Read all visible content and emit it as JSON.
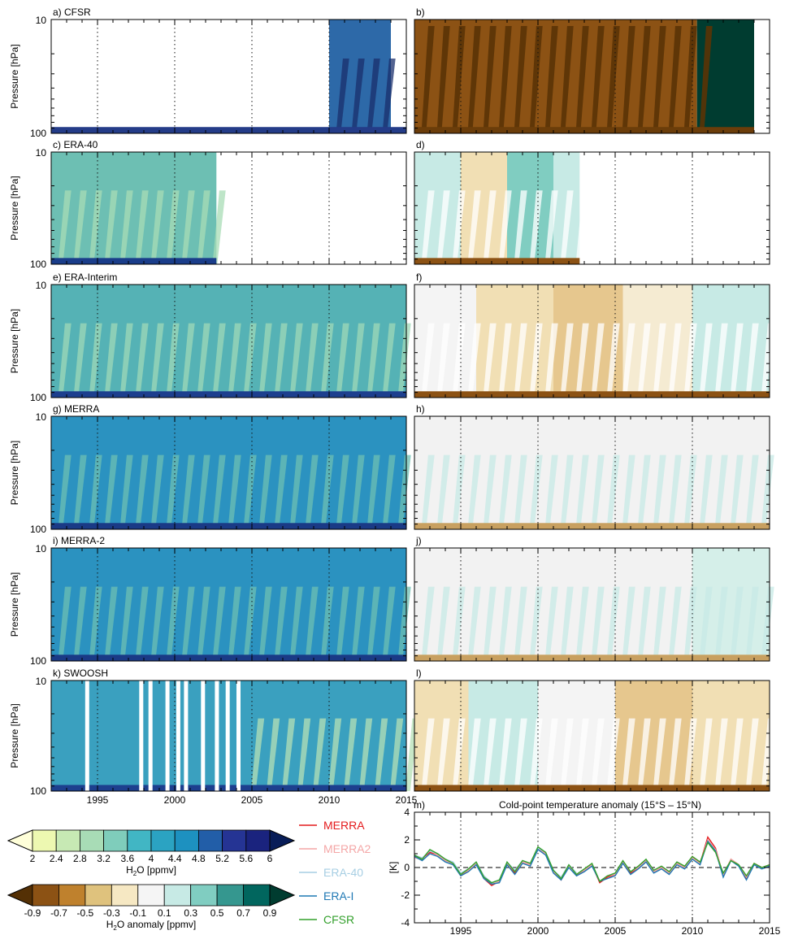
{
  "chart_data": [
    {
      "type": "heatmap",
      "panel": "a",
      "title": "a) CFSR",
      "ylabel": "Pressure [hPa]",
      "y_ticks": [
        "10",
        "100"
      ],
      "y_scale": "log",
      "ylim": [
        100,
        10
      ],
      "xlim": [
        1992,
        2015
      ],
      "variable": "H2O [ppmv]",
      "coverage": [
        [
          1992,
          2015
        ]
      ],
      "bands": [
        {
          "start": 1992.0,
          "end": 2010.0,
          "color": "#ffffff"
        },
        {
          "start": 2010.0,
          "end": 2014.0,
          "color": "#2d69a8"
        }
      ],
      "bottom_color": "#243c88",
      "stripe_color": "#1a2f6c",
      "stripe_period": 1,
      "stripe_start": 2010.0,
      "stripe_end": 2014.0
    },
    {
      "type": "heatmap",
      "panel": "b",
      "title": "b)",
      "y_scale": "log",
      "ylim": [
        100,
        10
      ],
      "xlim": [
        1992,
        2015
      ],
      "variable": "H2O anomaly [ppmv]",
      "coverage": [
        [
          1992,
          2014
        ]
      ],
      "bands": [
        {
          "start": 1992.0,
          "end": 2010.3,
          "color": "#8c5214"
        },
        {
          "start": 2010.3,
          "end": 2014.0,
          "color": "#003c30"
        }
      ],
      "bottom_color": "#6b3d0a",
      "stripe_color": "#5a3306",
      "stripe_period": 1,
      "stripe_start": 1992.0,
      "stripe_end": 2010.3
    },
    {
      "type": "heatmap",
      "panel": "c",
      "title": "c) ERA-40",
      "ylabel": "Pressure [hPa]",
      "y_ticks": [
        "10",
        "100"
      ],
      "y_scale": "log",
      "ylim": [
        100,
        10
      ],
      "xlim": [
        1992,
        2015
      ],
      "variable": "H2O [ppmv]",
      "coverage": [
        [
          1992,
          2002.7
        ]
      ],
      "bands": [
        {
          "start": 1992.0,
          "end": 2002.7,
          "color": "#6dbfb3"
        }
      ],
      "bottom_color": "#1a3d8a",
      "stripe_color": "#a8dcb6",
      "stripe_period": 1,
      "stripe_start": 1992.0,
      "stripe_end": 2002.7
    },
    {
      "type": "heatmap",
      "panel": "d",
      "title": "d)",
      "y_scale": "log",
      "ylim": [
        100,
        10
      ],
      "xlim": [
        1992,
        2015
      ],
      "variable": "H2O anomaly [ppmv]",
      "coverage": [
        [
          1992,
          2002.7
        ]
      ],
      "bands": [
        {
          "start": 1992.0,
          "end": 1995.0,
          "color": "#c7eae5"
        },
        {
          "start": 1995.0,
          "end": 1998.0,
          "color": "#f1dfb4"
        },
        {
          "start": 1998.0,
          "end": 2001.0,
          "color": "#80cdc1"
        },
        {
          "start": 2001.0,
          "end": 2002.7,
          "color": "#c7eae5"
        }
      ],
      "bottom_color": "#8c5214",
      "stripe_color": "#ffffff",
      "stripe_period": 1,
      "stripe_start": 1992.0,
      "stripe_end": 2002.7
    },
    {
      "type": "heatmap",
      "panel": "e",
      "title": "e) ERA-Interim",
      "ylabel": "Pressure [hPa]",
      "y_ticks": [
        "10",
        "100"
      ],
      "y_scale": "log",
      "ylim": [
        100,
        10
      ],
      "xlim": [
        1992,
        2015
      ],
      "variable": "H2O [ppmv]",
      "coverage": [
        [
          1992,
          2015
        ]
      ],
      "bands": [
        {
          "start": 1992.0,
          "end": 2015.0,
          "color": "#55b2b5"
        }
      ],
      "bottom_color": "#1d3f8e",
      "stripe_color": "#9fd8b8",
      "stripe_period": 1,
      "stripe_start": 1992.0,
      "stripe_end": 2015.0
    },
    {
      "type": "heatmap",
      "panel": "f",
      "title": "f)",
      "y_scale": "log",
      "ylim": [
        100,
        10
      ],
      "xlim": [
        1992,
        2015
      ],
      "variable": "H2O anomaly [ppmv]",
      "coverage": [
        [
          1992,
          2015
        ]
      ],
      "bands": [
        {
          "start": 1992.0,
          "end": 1996.0,
          "color": "#f4f4f4"
        },
        {
          "start": 1996.0,
          "end": 2001.0,
          "color": "#f1dfb4"
        },
        {
          "start": 2001.0,
          "end": 2005.5,
          "color": "#e6c78e"
        },
        {
          "start": 2005.5,
          "end": 2010.0,
          "color": "#f5ebd2"
        },
        {
          "start": 2010.0,
          "end": 2015.0,
          "color": "#c7eae5"
        }
      ],
      "bottom_color": "#8c5214",
      "stripe_color": "#ffffff",
      "stripe_period": 1,
      "stripe_start": 1992.0,
      "stripe_end": 2015.0
    },
    {
      "type": "heatmap",
      "panel": "g",
      "title": "g) MERRA",
      "ylabel": "Pressure [hPa]",
      "y_ticks": [
        "10",
        "100"
      ],
      "y_scale": "log",
      "ylim": [
        100,
        10
      ],
      "xlim": [
        1992,
        2015
      ],
      "variable": "H2O [ppmv]",
      "coverage": [
        [
          1992,
          2015
        ]
      ],
      "bands": [
        {
          "start": 1992.0,
          "end": 2015.0,
          "color": "#2b92c0"
        }
      ],
      "bottom_color": "#1a3a86",
      "stripe_color": "#6dbfb3",
      "stripe_period": 1,
      "stripe_start": 1992.0,
      "stripe_end": 2015.0
    },
    {
      "type": "heatmap",
      "panel": "h",
      "title": "h)",
      "y_scale": "log",
      "ylim": [
        100,
        10
      ],
      "xlim": [
        1992,
        2015
      ],
      "variable": "H2O anomaly [ppmv]",
      "coverage": [
        [
          1992,
          2015
        ]
      ],
      "bands": [
        {
          "start": 1992.0,
          "end": 2015.0,
          "color": "#f2f2f2"
        }
      ],
      "bottom_color": "#c8a060",
      "stripe_color": "#c7eae5",
      "stripe_period": 1,
      "stripe_start": 1992.0,
      "stripe_end": 2015.0
    },
    {
      "type": "heatmap",
      "panel": "i",
      "title": "i) MERRA-2",
      "ylabel": "Pressure [hPa]",
      "y_ticks": [
        "10",
        "100"
      ],
      "y_scale": "log",
      "ylim": [
        100,
        10
      ],
      "xlim": [
        1992,
        2015
      ],
      "variable": "H2O [ppmv]",
      "coverage": [
        [
          1992,
          2015
        ]
      ],
      "bands": [
        {
          "start": 1992.0,
          "end": 2015.0,
          "color": "#2b92c0"
        }
      ],
      "bottom_color": "#1a3a86",
      "stripe_color": "#6dbfb3",
      "stripe_period": 1,
      "stripe_start": 1992.0,
      "stripe_end": 2015.0
    },
    {
      "type": "heatmap",
      "panel": "j",
      "title": "j)",
      "y_scale": "log",
      "ylim": [
        100,
        10
      ],
      "xlim": [
        1992,
        2015
      ],
      "variable": "H2O anomaly [ppmv]",
      "coverage": [
        [
          1992,
          2015
        ]
      ],
      "bands": [
        {
          "start": 1992.0,
          "end": 2010.0,
          "color": "#f2f2f2"
        },
        {
          "start": 2010.0,
          "end": 2015.0,
          "color": "#d5efe9"
        }
      ],
      "bottom_color": "#c8a060",
      "stripe_color": "#c7eae5",
      "stripe_period": 1,
      "stripe_start": 1992.0,
      "stripe_end": 2015.0
    },
    {
      "type": "heatmap",
      "panel": "k",
      "title": "k) SWOOSH",
      "ylabel": "Pressure [hPa]",
      "y_ticks": [
        "10",
        "100"
      ],
      "y_scale": "log",
      "ylim": [
        100,
        10
      ],
      "xlim": [
        1992,
        2015
      ],
      "variable": "H2O [ppmv]",
      "coverage": [
        [
          1992,
          2015
        ]
      ],
      "bands": [
        {
          "start": 1992.0,
          "end": 2015.0,
          "color": "#3aa0bf"
        }
      ],
      "bottom_color": "#1d3f8e",
      "stripe_color": "#b5e0b5",
      "stripe_period": 1,
      "stripe_start": 2004.5,
      "stripe_end": 2015.0,
      "gaps": [
        1994.2,
        1997.7,
        1998.3,
        1999.4,
        2000.1,
        2000.6,
        2001.7,
        2002.6,
        2003.3,
        2004.0
      ]
    },
    {
      "type": "heatmap",
      "panel": "l",
      "title": "l)",
      "y_scale": "log",
      "ylim": [
        100,
        10
      ],
      "xlim": [
        1992,
        2015
      ],
      "variable": "H2O anomaly [ppmv]",
      "coverage": [
        [
          1992,
          2015
        ]
      ],
      "bands": [
        {
          "start": 1992.0,
          "end": 1995.5,
          "color": "#f1dfb4"
        },
        {
          "start": 1995.5,
          "end": 2000.0,
          "color": "#c7eae5"
        },
        {
          "start": 2000.0,
          "end": 2005.0,
          "color": "#f4f4f4"
        },
        {
          "start": 2005.0,
          "end": 2010.0,
          "color": "#e6c78e"
        },
        {
          "start": 2010.0,
          "end": 2015.0,
          "color": "#f1dfb4"
        }
      ],
      "bottom_color": "#8c5214",
      "stripe_color": "#ffffff",
      "stripe_period": 1,
      "stripe_start": 1992.0,
      "stripe_end": 2015.0
    },
    {
      "type": "line",
      "panel": "m",
      "label": "m)",
      "title": "Cold-point temperature anomaly (15°S – 15°N)",
      "ylabel": "[K]",
      "xlim": [
        1992,
        2015
      ],
      "ylim": [
        -4,
        4
      ],
      "y_ticks": [
        4,
        2,
        0,
        -2,
        -4
      ],
      "x_ticks": [
        1995,
        2000,
        2005,
        2010,
        2015
      ],
      "x": [
        1992.0,
        1992.5,
        1993.0,
        1993.5,
        1994.0,
        1994.5,
        1995.0,
        1995.5,
        1996.0,
        1996.5,
        1997.0,
        1997.5,
        1998.0,
        1998.5,
        1999.0,
        1999.5,
        2000.0,
        2000.5,
        2001.0,
        2001.5,
        2002.0,
        2002.5,
        2003.0,
        2003.5,
        2004.0,
        2004.5,
        2005.0,
        2005.5,
        2006.0,
        2006.5,
        2007.0,
        2007.5,
        2008.0,
        2008.5,
        2009.0,
        2009.5,
        2010.0,
        2010.5,
        2011.0,
        2011.5,
        2012.0,
        2012.5,
        2013.0,
        2013.5,
        2014.0,
        2014.5,
        2015.0
      ],
      "series": [
        {
          "name": "MERRA",
          "color": "#e41a1c",
          "values": [
            0.8,
            0.6,
            1.1,
            0.9,
            0.5,
            0.3,
            -0.6,
            -0.2,
            0.3,
            -0.8,
            -1.3,
            -1.0,
            0.3,
            -0.4,
            0.4,
            0.2,
            1.4,
            1.0,
            -0.3,
            -0.9,
            0.1,
            -0.6,
            -0.2,
            0.2,
            -1.1,
            -0.7,
            -0.5,
            0.4,
            -0.4,
            0.0,
            0.5,
            -0.3,
            0.0,
            -0.4,
            0.3,
            0.0,
            0.8,
            0.3,
            2.2,
            1.4,
            -0.6,
            0.6,
            0.2,
            -0.8,
            0.3,
            0.0,
            0.2
          ]
        },
        {
          "name": "MERRA2",
          "color": "#f4a6a6",
          "values": [
            0.7,
            0.6,
            1.0,
            0.9,
            0.5,
            0.3,
            -0.5,
            -0.2,
            0.3,
            -0.7,
            -1.2,
            -1.0,
            0.3,
            -0.3,
            0.4,
            0.2,
            1.3,
            1.0,
            -0.3,
            -0.8,
            0.1,
            -0.5,
            -0.2,
            0.2,
            -1.0,
            -0.6,
            -0.5,
            0.4,
            -0.3,
            0.0,
            0.5,
            -0.3,
            0.0,
            -0.4,
            0.3,
            0.0,
            0.7,
            0.3,
            2.0,
            1.3,
            -0.5,
            0.6,
            0.2,
            -0.7,
            0.3,
            0.0,
            0.2
          ]
        },
        {
          "name": "ERA-40",
          "color": "#a6cee3",
          "values": [
            0.9,
            0.7,
            1.2,
            1.0,
            0.6,
            0.4,
            -0.4,
            -0.1,
            0.4,
            -0.6,
            -1.1,
            -0.9,
            0.4,
            -0.2,
            0.5,
            0.3,
            1.4,
            1.1,
            -0.2,
            -0.7,
            0.2,
            -0.4,
            null,
            null,
            null,
            null,
            null,
            null,
            null,
            null,
            null,
            null,
            null,
            null,
            null,
            null,
            null,
            null,
            null,
            null,
            null,
            null,
            null,
            null,
            null,
            null,
            null
          ]
        },
        {
          "name": "ERA-I",
          "color": "#1f78b4",
          "values": [
            0.8,
            0.5,
            1.0,
            0.8,
            0.4,
            0.2,
            -0.6,
            -0.3,
            0.2,
            -0.8,
            -1.2,
            -1.1,
            0.2,
            -0.5,
            0.3,
            0.1,
            1.3,
            0.9,
            -0.4,
            -0.9,
            0.0,
            -0.6,
            -0.3,
            0.1,
            -1.0,
            -0.8,
            -0.6,
            0.3,
            -0.5,
            -0.1,
            0.4,
            -0.4,
            -0.1,
            -0.5,
            0.2,
            -0.1,
            0.6,
            0.2,
            1.9,
            1.2,
            -0.7,
            0.5,
            0.1,
            -0.9,
            0.2,
            -0.1,
            0.1
          ]
        },
        {
          "name": "CFSR",
          "color": "#33a02c",
          "values": [
            0.9,
            0.6,
            1.3,
            1.0,
            0.6,
            0.3,
            -0.5,
            -0.1,
            0.4,
            -0.7,
            -1.1,
            -0.9,
            0.4,
            -0.3,
            0.5,
            0.3,
            1.5,
            1.1,
            -0.2,
            -0.8,
            0.2,
            -0.5,
            -0.1,
            0.3,
            -1.0,
            -0.6,
            -0.4,
            0.5,
            -0.3,
            0.1,
            0.6,
            -0.2,
            0.1,
            -0.3,
            0.4,
            0.1,
            0.8,
            0.4,
            1.8,
            1.1,
            -0.4,
            0.5,
            0.2,
            -0.6,
            0.3,
            0.0,
            0.2
          ]
        }
      ]
    }
  ],
  "shared_axis": {
    "x_ticks": [
      "1995",
      "2000",
      "2005",
      "2010",
      "2015"
    ],
    "dotted_years": [
      1995,
      2000,
      2005,
      2010
    ]
  },
  "colorbar_h2o": {
    "label_prefix": "H",
    "label_sub": "2",
    "label_suffix": "O [ppmv]",
    "ticks": [
      "2",
      "2.4",
      "2.8",
      "3.2",
      "3.6",
      "4",
      "4.4",
      "4.8",
      "5.2",
      "5.6",
      "6"
    ],
    "colors": [
      "#ffffd9",
      "#edf8b1",
      "#c7e9b4",
      "#a8dcb6",
      "#7fcdbb",
      "#41b6c4",
      "#2ba3c2",
      "#1d91c0",
      "#225ea8",
      "#253494",
      "#1a237e",
      "#081d58"
    ]
  },
  "colorbar_anom": {
    "label_prefix": "H",
    "label_sub": "2",
    "label_suffix": "O anomaly [ppmv]",
    "ticks": [
      "-0.9",
      "-0.7",
      "-0.5",
      "-0.3",
      "-0.1",
      "0.1",
      "0.3",
      "0.5",
      "0.7",
      "0.9"
    ],
    "colors": [
      "#543005",
      "#8c5214",
      "#bf812d",
      "#dfc27d",
      "#f6e8c3",
      "#f5f5f5",
      "#c7eae5",
      "#80cdc1",
      "#35978f",
      "#01665e",
      "#003c30"
    ]
  },
  "legend": {
    "items": [
      {
        "name": "MERRA",
        "color": "#e41a1c"
      },
      {
        "name": "MERRA2",
        "color": "#f4a6a6"
      },
      {
        "name": "ERA-40",
        "color": "#a6cee3"
      },
      {
        "name": "ERA-I",
        "color": "#1f78b4"
      },
      {
        "name": "CFSR",
        "color": "#33a02c"
      }
    ]
  }
}
